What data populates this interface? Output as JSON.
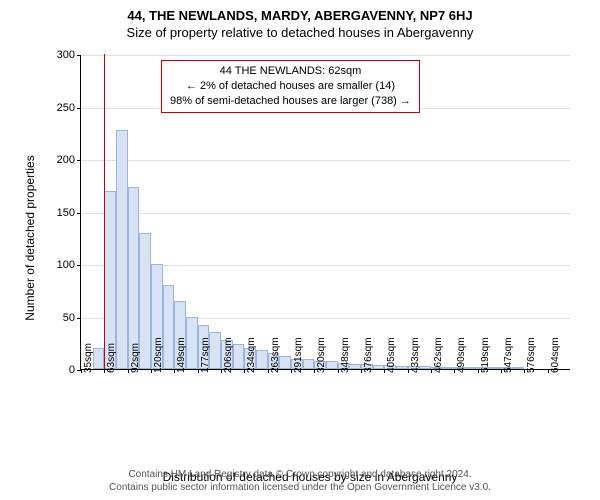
{
  "titles": {
    "line1": "44, THE NEWLANDS, MARDY, ABERGAVENNY, NP7 6HJ",
    "line2": "Size of property relative to detached houses in Abergavenny"
  },
  "axes": {
    "ylabel": "Number of detached properties",
    "xlabel": "Distribution of detached houses by size in Abergavenny",
    "ylim_max": 300,
    "yticks": [
      0,
      50,
      100,
      150,
      200,
      250,
      300
    ],
    "xtick_labels": [
      "35sqm",
      "63sqm",
      "92sqm",
      "120sqm",
      "149sqm",
      "177sqm",
      "206sqm",
      "234sqm",
      "263sqm",
      "291sqm",
      "320sqm",
      "348sqm",
      "376sqm",
      "405sqm",
      "433sqm",
      "462sqm",
      "490sqm",
      "519sqm",
      "547sqm",
      "576sqm",
      "604sqm"
    ],
    "xtick_step": 2
  },
  "chart": {
    "type": "histogram",
    "bar_count": 42,
    "values": [
      0,
      20,
      170,
      228,
      173,
      130,
      100,
      80,
      65,
      50,
      42,
      35,
      28,
      24,
      20,
      18,
      15,
      12,
      10,
      10,
      8,
      8,
      6,
      5,
      5,
      4,
      4,
      3,
      3,
      3,
      2,
      2,
      2,
      2,
      1,
      1,
      1,
      1,
      0,
      0,
      0,
      0
    ],
    "bar_fill": "#d7e3f4",
    "bar_stroke": "#9bb5dc",
    "grid_color": "#e0e0e0",
    "background": "#ffffff"
  },
  "reference": {
    "color": "#cc0000",
    "bar_index": 2,
    "annot": {
      "line1": "44 THE NEWLANDS: 62sqm",
      "line2": "← 2% of detached houses are smaller (14)",
      "line3": "98% of semi-detached houses are larger (738) →"
    }
  },
  "footer": {
    "line1": "Contains HM Land Registry data © Crown copyright and database right 2024.",
    "line2": "Contains public sector information licensed under the Open Government Licence v3.0."
  }
}
